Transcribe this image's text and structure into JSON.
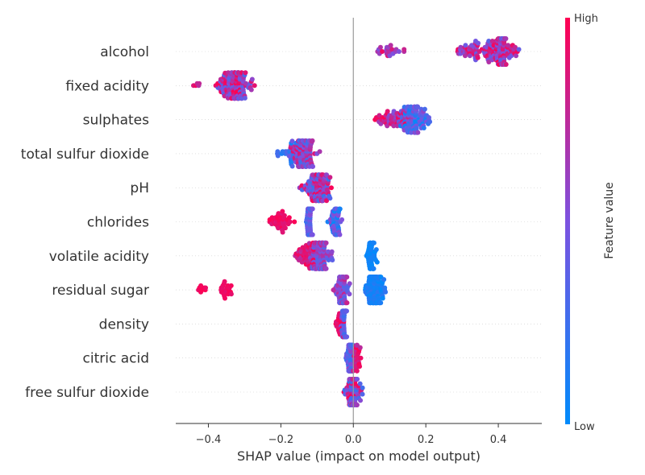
{
  "chart_data": {
    "type": "scatter",
    "subtype": "shap-beeswarm",
    "title": "",
    "xlabel": "SHAP value (impact on model output)",
    "xlim": [
      -0.49,
      0.52
    ],
    "xticks": [
      -0.4,
      -0.2,
      0.0,
      0.2,
      0.4
    ],
    "xtick_labels": [
      "−0.4",
      "−0.2",
      "0.0",
      "0.2",
      "0.4"
    ],
    "zero_line": 0.0,
    "colorbar": {
      "label": "Feature value",
      "high_label": "High",
      "low_label": "Low",
      "low_color": "#008bfb",
      "mid_color": "#7c52e0",
      "high_color": "#ff0052"
    },
    "features": [
      {
        "name": "alcohol",
        "clusters": [
          {
            "center": 0.41,
            "spread": 0.035,
            "count": 110,
            "value_lo": 0.35,
            "value_hi": 1.0
          },
          {
            "center": 0.33,
            "spread": 0.045,
            "count": 55,
            "value_lo": 0.4,
            "value_hi": 1.0
          },
          {
            "center": 0.1,
            "spread": 0.04,
            "count": 24,
            "value_lo": 0.5,
            "value_hi": 1.0
          }
        ],
        "range": [
          0.02,
          0.48
        ]
      },
      {
        "name": "fixed acidity",
        "clusters": [
          {
            "center": -0.33,
            "spread": 0.035,
            "count": 140,
            "value_lo": 0.3,
            "value_hi": 1.0
          },
          {
            "center": -0.43,
            "spread": 0.01,
            "count": 5,
            "value_lo": 0.7,
            "value_hi": 1.0
          }
        ],
        "range": [
          -0.45,
          -0.23
        ]
      },
      {
        "name": "sulphates",
        "clusters": [
          {
            "center": 0.17,
            "spread": 0.03,
            "count": 100,
            "value_lo": 0.0,
            "value_hi": 0.6
          },
          {
            "center": 0.11,
            "spread": 0.04,
            "count": 55,
            "value_lo": 0.5,
            "value_hi": 1.0
          }
        ],
        "range": [
          0.06,
          0.27
        ]
      },
      {
        "name": "total sulfur dioxide",
        "clusters": [
          {
            "center": -0.14,
            "spread": 0.03,
            "count": 120,
            "value_lo": 0.2,
            "value_hi": 0.9
          },
          {
            "center": -0.19,
            "spread": 0.03,
            "count": 15,
            "value_lo": 0.0,
            "value_hi": 0.3
          }
        ],
        "range": [
          -0.25,
          -0.02
        ]
      },
      {
        "name": "pH",
        "clusters": [
          {
            "center": -0.1,
            "spread": 0.03,
            "count": 130,
            "value_lo": 0.2,
            "value_hi": 1.0
          }
        ],
        "range": [
          -0.2,
          -0.02
        ]
      },
      {
        "name": "chlorides",
        "clusters": [
          {
            "center": -0.12,
            "spread": 0.008,
            "count": 70,
            "value_lo": 0.2,
            "value_hi": 0.55
          },
          {
            "center": -0.05,
            "spread": 0.015,
            "count": 55,
            "value_lo": 0.0,
            "value_hi": 0.6
          },
          {
            "center": -0.2,
            "spread": 0.025,
            "count": 40,
            "value_lo": 0.85,
            "value_hi": 1.0
          }
        ],
        "range": [
          -0.25,
          0.0
        ]
      },
      {
        "name": "volatile acidity",
        "clusters": [
          {
            "center": -0.09,
            "spread": 0.02,
            "count": 110,
            "value_lo": 0.3,
            "value_hi": 0.8
          },
          {
            "center": -0.13,
            "spread": 0.025,
            "count": 55,
            "value_lo": 0.7,
            "value_hi": 1.0
          },
          {
            "center": 0.05,
            "spread": 0.01,
            "count": 55,
            "value_lo": 0.0,
            "value_hi": 0.1
          }
        ],
        "range": [
          -0.17,
          0.08
        ]
      },
      {
        "name": "residual sugar",
        "clusters": [
          {
            "center": 0.06,
            "spread": 0.02,
            "count": 170,
            "value_lo": 0.0,
            "value_hi": 0.2
          },
          {
            "center": -0.03,
            "spread": 0.015,
            "count": 90,
            "value_lo": 0.3,
            "value_hi": 0.8
          },
          {
            "center": -0.35,
            "spread": 0.015,
            "count": 22,
            "value_lo": 0.9,
            "value_hi": 1.0
          },
          {
            "center": -0.42,
            "spread": 0.01,
            "count": 8,
            "value_lo": 0.9,
            "value_hi": 1.0
          }
        ],
        "range": [
          -0.44,
          0.11
        ]
      },
      {
        "name": "density",
        "clusters": [
          {
            "center": -0.025,
            "spread": 0.006,
            "count": 75,
            "value_lo": 0.2,
            "value_hi": 0.55
          },
          {
            "center": -0.04,
            "spread": 0.01,
            "count": 20,
            "value_lo": 0.85,
            "value_hi": 1.0
          }
        ],
        "range": [
          -0.06,
          -0.01
        ]
      },
      {
        "name": "citric acid",
        "clusters": [
          {
            "center": -0.01,
            "spread": 0.007,
            "count": 80,
            "value_lo": 0.2,
            "value_hi": 0.6
          },
          {
            "center": 0.01,
            "spread": 0.01,
            "count": 30,
            "value_lo": 0.7,
            "value_hi": 1.0
          }
        ],
        "range": [
          -0.04,
          0.03
        ]
      },
      {
        "name": "free sulfur dioxide",
        "clusters": [
          {
            "center": 0.0,
            "spread": 0.015,
            "count": 100,
            "value_lo": 0.2,
            "value_hi": 1.0
          }
        ],
        "range": [
          -0.04,
          0.05
        ]
      }
    ]
  }
}
